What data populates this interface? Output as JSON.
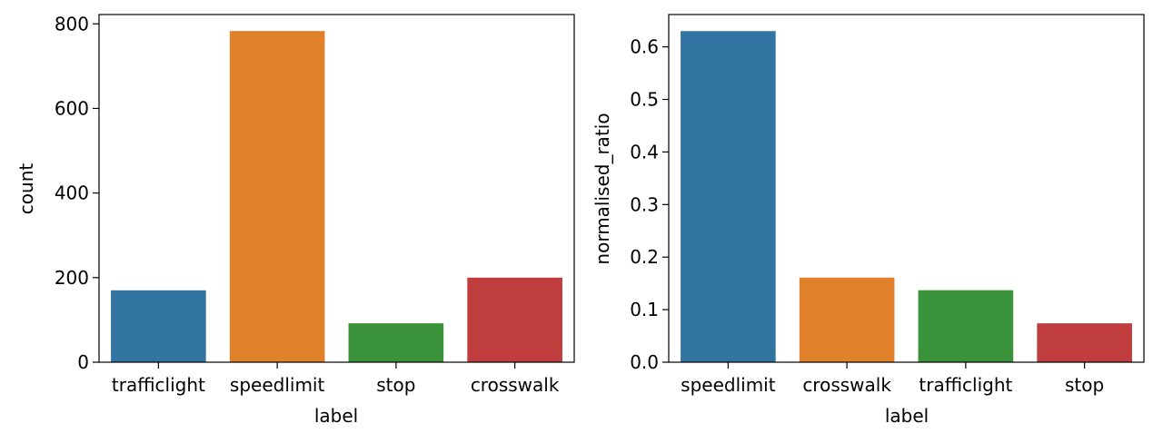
{
  "chart_data": [
    {
      "type": "bar",
      "title": "",
      "xlabel": "label",
      "ylabel": "count",
      "categories": [
        "trafficlight",
        "speedlimit",
        "stop",
        "crosswalk"
      ],
      "values": [
        170,
        783,
        92,
        200
      ],
      "bar_colors": [
        "#3274a1",
        "#e1812c",
        "#3a923a",
        "#c03d3e"
      ],
      "ylim": [
        0,
        822
      ],
      "yticks": [
        0,
        200,
        400,
        600,
        800
      ],
      "ytick_labels": [
        "0",
        "200",
        "400",
        "600",
        "800"
      ],
      "grid": false,
      "legend": "none"
    },
    {
      "type": "bar",
      "title": "",
      "xlabel": "label",
      "ylabel": "normalised_ratio",
      "categories": [
        "speedlimit",
        "crosswalk",
        "trafficlight",
        "stop"
      ],
      "values": [
        0.63,
        0.161,
        0.137,
        0.074
      ],
      "bar_colors": [
        "#3274a1",
        "#e1812c",
        "#3a923a",
        "#c03d3e"
      ],
      "ylim": [
        0,
        0.6615
      ],
      "yticks": [
        0,
        0.1,
        0.2,
        0.3,
        0.4,
        0.5,
        0.6
      ],
      "ytick_labels": [
        "0.0",
        "0.1",
        "0.2",
        "0.3",
        "0.4",
        "0.5",
        "0.6"
      ],
      "grid": false,
      "legend": "none"
    }
  ]
}
